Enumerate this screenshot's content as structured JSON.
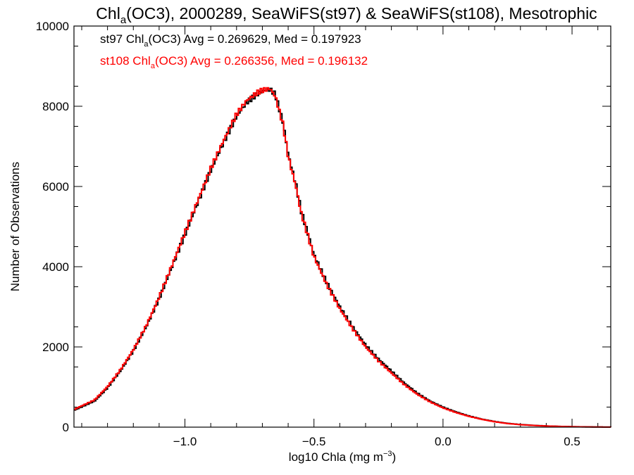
{
  "chart_data": {
    "type": "line",
    "title": {
      "pre": "Chl",
      "sub": "a",
      "post": "(OC3), 2000289, SeaWiFS(st97) & SeaWiFS(st108), Mesotrophic"
    },
    "xlabel": {
      "pre": "log10 Chla (mg m",
      "sup": "−3",
      "post": ")"
    },
    "ylabel": "Number of Observations",
    "xlim": [
      -1.43,
      0.65
    ],
    "ylim": [
      0,
      10000
    ],
    "x_ticks": [
      {
        "value": -1.0,
        "label": "−1.0"
      },
      {
        "value": -0.5,
        "label": "−0.5"
      },
      {
        "value": 0.0,
        "label": "0.0"
      },
      {
        "value": 0.5,
        "label": "0.5"
      }
    ],
    "y_ticks": [
      {
        "value": 0,
        "label": "0"
      },
      {
        "value": 2000,
        "label": "2000"
      },
      {
        "value": 4000,
        "label": "4000"
      },
      {
        "value": 6000,
        "label": "6000"
      },
      {
        "value": 8000,
        "label": "8000"
      },
      {
        "value": 10000,
        "label": "10000"
      }
    ],
    "annotations": [
      {
        "pre": "st97 Chl",
        "sub": "a",
        "post": "(OC3) Avg = 0.269629, Med = 0.197923",
        "color": "#000000"
      },
      {
        "pre": "st108 Chl",
        "sub": "a",
        "post": "(OC3) Avg = 0.266356, Med = 0.196132",
        "color": "#ff0000"
      }
    ],
    "grid": false,
    "series": [
      {
        "name": "st97",
        "color": "#000000",
        "x": [
          -1.43,
          -1.35,
          -1.3,
          -1.25,
          -1.2,
          -1.15,
          -1.1,
          -1.05,
          -1.0,
          -0.95,
          -0.9,
          -0.85,
          -0.8,
          -0.76,
          -0.72,
          -0.7,
          -0.67,
          -0.65,
          -0.62,
          -0.6,
          -0.57,
          -0.55,
          -0.52,
          -0.5,
          -0.45,
          -0.4,
          -0.35,
          -0.3,
          -0.25,
          -0.2,
          -0.15,
          -0.1,
          -0.05,
          0.0,
          0.05,
          0.1,
          0.15,
          0.2,
          0.25,
          0.3,
          0.35,
          0.4,
          0.45,
          0.5,
          0.55,
          0.6,
          0.65
        ],
        "y": [
          420,
          650,
          980,
          1400,
          1900,
          2500,
          3200,
          4000,
          4800,
          5600,
          6400,
          7100,
          7750,
          8100,
          8300,
          8380,
          8420,
          8300,
          7600,
          6800,
          6050,
          5400,
          4750,
          4300,
          3600,
          3000,
          2500,
          2050,
          1700,
          1400,
          1100,
          850,
          650,
          500,
          380,
          280,
          200,
          140,
          95,
          65,
          45,
          30,
          20,
          12,
          8,
          4,
          2
        ]
      },
      {
        "name": "st108",
        "color": "#ff0000",
        "x": [
          -1.43,
          -1.35,
          -1.3,
          -1.25,
          -1.2,
          -1.15,
          -1.1,
          -1.05,
          -1.0,
          -0.95,
          -0.9,
          -0.85,
          -0.8,
          -0.76,
          -0.72,
          -0.7,
          -0.67,
          -0.65,
          -0.62,
          -0.6,
          -0.57,
          -0.55,
          -0.52,
          -0.5,
          -0.45,
          -0.4,
          -0.35,
          -0.3,
          -0.25,
          -0.2,
          -0.15,
          -0.1,
          -0.05,
          0.0,
          0.05,
          0.1,
          0.15,
          0.2,
          0.25,
          0.3,
          0.35,
          0.4,
          0.45,
          0.5,
          0.55,
          0.6,
          0.65
        ],
        "y": [
          440,
          680,
          1010,
          1430,
          1930,
          2530,
          3240,
          4040,
          4850,
          5650,
          6450,
          7150,
          7800,
          8150,
          8340,
          8400,
          8440,
          8250,
          7550,
          6750,
          6000,
          5350,
          4700,
          4250,
          3550,
          2950,
          2450,
          2000,
          1650,
          1350,
          1060,
          820,
          630,
          480,
          365,
          270,
          195,
          135,
          90,
          62,
          43,
          28,
          19,
          11,
          7,
          4,
          2
        ]
      }
    ]
  }
}
